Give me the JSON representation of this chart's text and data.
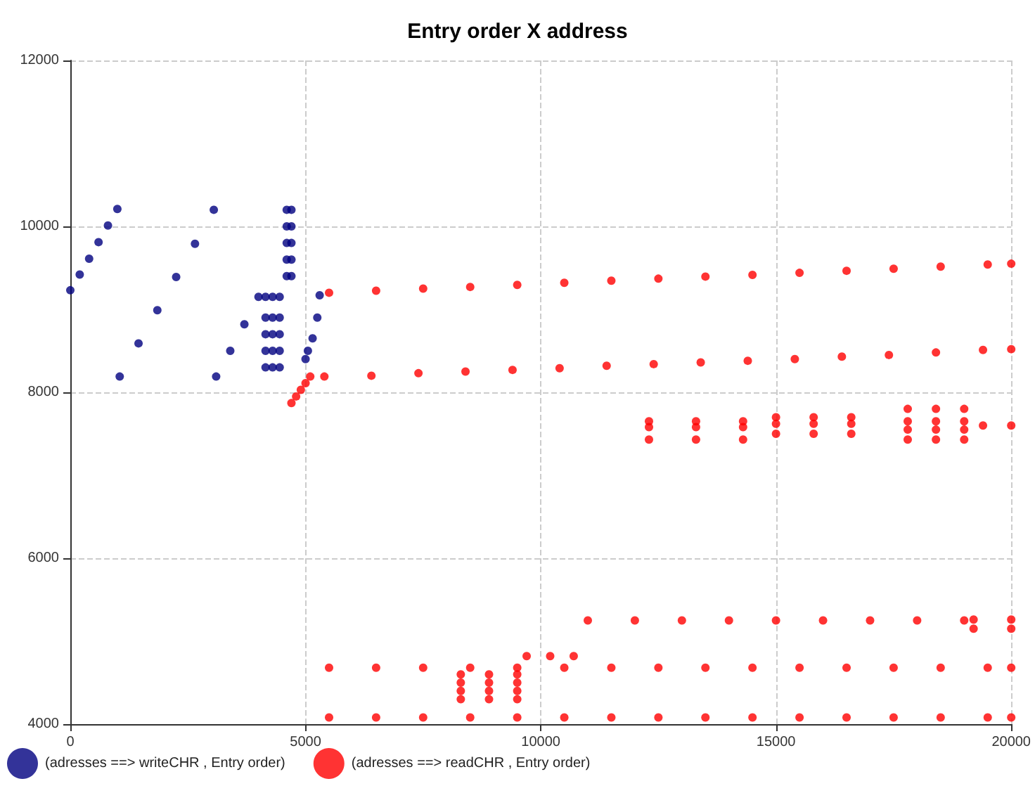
{
  "chart_data": {
    "type": "scatter",
    "title": "Entry order X address",
    "xlim": [
      0,
      20000
    ],
    "ylim": [
      4000,
      12000
    ],
    "xticks": [
      0,
      5000,
      10000,
      15000,
      20000
    ],
    "yticks": [
      4000,
      6000,
      8000,
      10000,
      12000
    ],
    "grid": true,
    "legend": "bottom left",
    "marker": "circle",
    "series": [
      {
        "name": "(adresses ==> writeCHR , Entry order)",
        "color": "#000080",
        "x": [
          0,
          200,
          400,
          600,
          800,
          1000,
          1050,
          1450,
          1850,
          2250,
          2650,
          3050,
          3100,
          3400,
          3700,
          4000,
          4150,
          4150,
          4150,
          4150,
          4150,
          4300,
          4300,
          4300,
          4300,
          4300,
          4450,
          4450,
          4450,
          4450,
          4450,
          4600,
          4600,
          4600,
          4600,
          4600,
          4700,
          4700,
          4700,
          4700,
          4700,
          5000,
          5050,
          5150,
          5250,
          5300
        ],
        "values": [
          9230,
          9420,
          9610,
          9810,
          10010,
          10210,
          8190,
          8590,
          8990,
          9390,
          9790,
          10200,
          8190,
          8500,
          8820,
          9150,
          8300,
          8500,
          8700,
          8900,
          9150,
          8300,
          8500,
          8700,
          8900,
          9150,
          8300,
          8500,
          8700,
          8900,
          9150,
          9400,
          9600,
          9800,
          10000,
          10200,
          9400,
          9600,
          9800,
          10000,
          10200,
          8400,
          8500,
          8650,
          8900,
          9170
        ]
      },
      {
        "name": "(adresses ==> readCHR , Entry order)",
        "color": "#ff0000",
        "x": [
          4700,
          4800,
          4900,
          5000,
          5100,
          5500,
          6500,
          7500,
          8500,
          9500,
          10500,
          11500,
          12500,
          13500,
          14500,
          15500,
          16500,
          17500,
          18500,
          19500,
          20000,
          5400,
          6400,
          7400,
          8400,
          9400,
          10400,
          11400,
          12400,
          13400,
          14400,
          15400,
          16400,
          17400,
          18400,
          19400,
          20000,
          12300,
          12300,
          12300,
          13300,
          13300,
          13300,
          14300,
          14300,
          14300,
          15000,
          15000,
          15000,
          15800,
          15800,
          15800,
          16600,
          16600,
          16600,
          17800,
          17800,
          17800,
          17800,
          18400,
          18400,
          18400,
          18400,
          19000,
          19000,
          19000,
          19000,
          19400,
          20000,
          11000,
          12000,
          13000,
          14000,
          15000,
          16000,
          17000,
          18000,
          19000,
          19200,
          20000,
          19200,
          20000,
          5500,
          6500,
          7500,
          8500,
          9500,
          10500,
          11500,
          12500,
          13500,
          14500,
          15500,
          16500,
          17500,
          18500,
          19500,
          20000,
          8300,
          8300,
          8300,
          8300,
          8900,
          8900,
          8900,
          8900,
          9500,
          9500,
          9500,
          9500,
          9700,
          10200,
          10700,
          5500,
          6500,
          7500,
          8500,
          9500,
          10500,
          11500,
          12500,
          13500,
          14500,
          15500,
          16500,
          17500,
          18500,
          19500,
          20000
        ],
        "values": [
          7870,
          7950,
          8030,
          8110,
          8190,
          9200,
          9225,
          9250,
          9270,
          9295,
          9320,
          9345,
          9370,
          9395,
          9415,
          9440,
          9465,
          9490,
          9515,
          9540,
          9550,
          8190,
          8200,
          8230,
          8250,
          8270,
          8290,
          8320,
          8340,
          8360,
          8380,
          8400,
          8430,
          8450,
          8480,
          8510,
          8520,
          7650,
          7580,
          7430,
          7650,
          7580,
          7430,
          7650,
          7580,
          7430,
          7700,
          7620,
          7500,
          7700,
          7620,
          7500,
          7700,
          7620,
          7500,
          7800,
          7650,
          7550,
          7430,
          7800,
          7650,
          7550,
          7430,
          7800,
          7650,
          7550,
          7430,
          7600,
          7600,
          5250,
          5250,
          5250,
          5250,
          5250,
          5250,
          5250,
          5250,
          5250,
          5260,
          5260,
          5150,
          5150,
          4680,
          4680,
          4680,
          4680,
          4680,
          4680,
          4680,
          4680,
          4680,
          4680,
          4680,
          4680,
          4680,
          4680,
          4680,
          4680,
          4300,
          4400,
          4500,
          4600,
          4300,
          4400,
          4500,
          4600,
          4300,
          4400,
          4500,
          4600,
          4820,
          4820,
          4820,
          4080,
          4080,
          4080,
          4080,
          4080,
          4080,
          4080,
          4080,
          4080,
          4080,
          4080,
          4080,
          4080,
          4080,
          4080,
          4080
        ]
      }
    ]
  }
}
